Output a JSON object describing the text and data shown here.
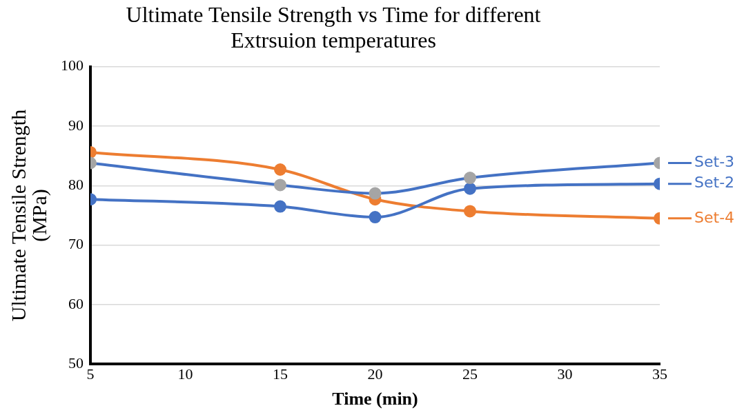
{
  "chart_data": {
    "type": "line",
    "title": "Ultimate Tensile Strength vs Time for different Extrsuion temperatures",
    "xlabel": "Time (min)",
    "ylabel": "Ultimate Tensile Strength (MPa)",
    "x": [
      5,
      15,
      20,
      25,
      35
    ],
    "series": [
      {
        "name": "Set-3",
        "color": "#4472c4",
        "colors": [
          "#a5a5a5",
          "#a5a5a5",
          "#a5a5a5",
          "#a5a5a5",
          "#a5a5a5"
        ],
        "values": [
          83.8,
          80.1,
          78.7,
          81.3,
          83.8
        ]
      },
      {
        "name": "Set-2",
        "color": "#4472c4",
        "values": [
          77.7,
          76.5,
          74.7,
          79.5,
          80.3
        ]
      },
      {
        "name": "Set-4",
        "color": "#ed7d31",
        "values": [
          85.6,
          82.7,
          77.7,
          75.7,
          74.5
        ]
      }
    ],
    "xlim": [
      5,
      35
    ],
    "xticks": [
      5,
      10,
      15,
      20,
      25,
      30,
      35
    ],
    "ylim": [
      50,
      100
    ],
    "yticks": [
      50,
      60,
      70,
      80,
      90,
      100
    ],
    "grid": "y",
    "legend": "right",
    "marker": "circle",
    "line_style": "solid"
  }
}
